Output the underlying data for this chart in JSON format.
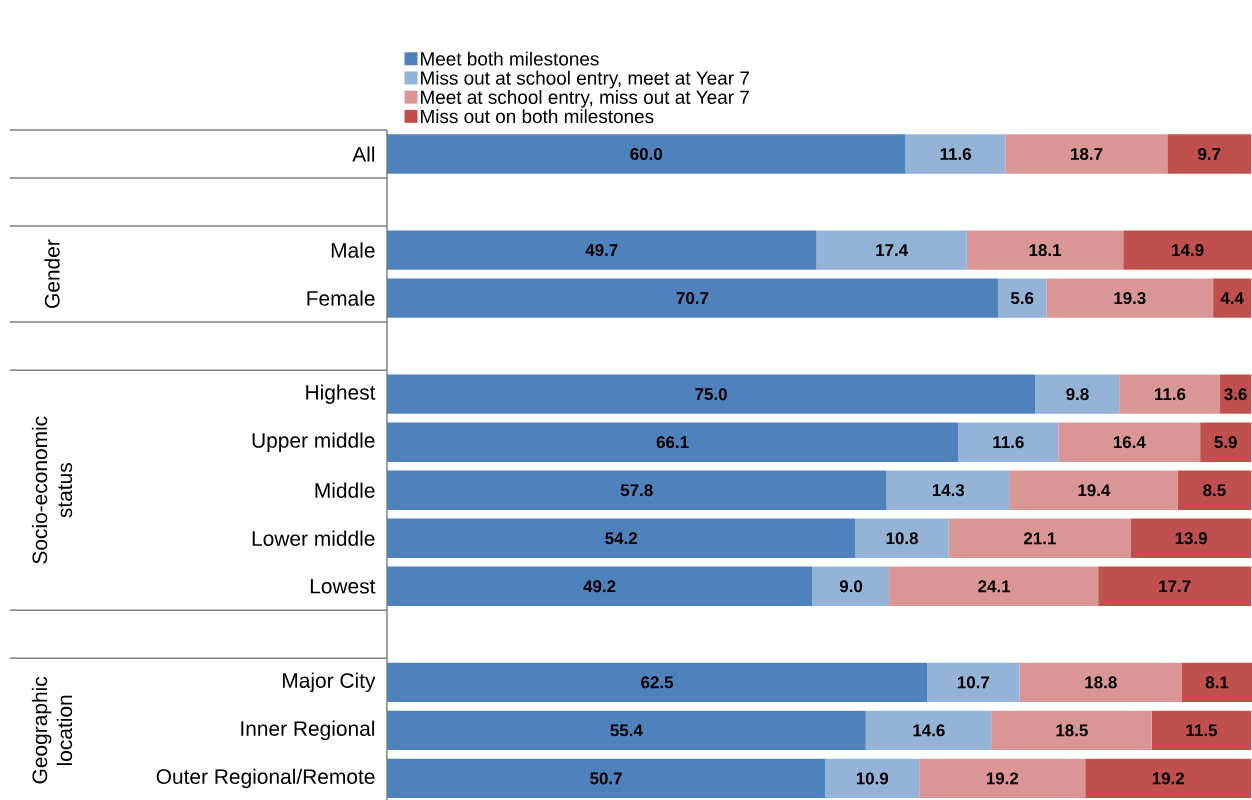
{
  "chart_data": {
    "type": "bar",
    "orientation": "horizontal",
    "stacked": true,
    "legend": "top",
    "categories": [
      "All",
      null,
      "Male",
      "Female",
      null,
      "Highest",
      "Upper middle",
      "Middle",
      "Lower middle",
      "Lowest",
      null,
      "Major City",
      "Inner Regional",
      "Outer Regional/Remote"
    ],
    "series": [
      {
        "name": "Meet both milestones",
        "color": "#4f81bd",
        "values": [
          60.0,
          null,
          49.7,
          70.7,
          null,
          75.0,
          66.1,
          57.8,
          54.2,
          49.2,
          null,
          62.5,
          55.4,
          50.7
        ],
        "value_labels": [
          "60.0",
          null,
          "49.7",
          "70.7",
          null,
          "75.0",
          "66.1",
          "57.8",
          "54.2",
          "49.2",
          null,
          "62.5",
          "55.4",
          "50.7"
        ]
      },
      {
        "name": "Miss out  at school entry, meet  at Year 7",
        "color": "#95b3d7",
        "values": [
          11.6,
          null,
          17.4,
          5.6,
          null,
          9.8,
          11.6,
          14.3,
          10.8,
          9.0,
          null,
          10.7,
          14.6,
          10.9
        ],
        "value_labels": [
          "11.6",
          null,
          "17.4",
          "5.6",
          null,
          "9.8",
          "11.6",
          "14.3",
          "10.8",
          "9.0",
          null,
          "10.7",
          "14.6",
          "10.9"
        ]
      },
      {
        "name": "Meet at school entry, miss out at Year 7",
        "color": "#d99694",
        "values": [
          18.7,
          null,
          18.1,
          19.3,
          null,
          11.6,
          16.4,
          19.4,
          21.1,
          24.1,
          null,
          18.8,
          18.5,
          19.2
        ],
        "value_labels": [
          "18.7",
          null,
          "18.1",
          "19.3",
          null,
          "11.6",
          "16.4",
          "19.4",
          "21.1",
          "24.1",
          null,
          "18.8",
          "18.5",
          "19.2"
        ]
      },
      {
        "name": "Miss out on both milestones",
        "color": "#c0504d",
        "values": [
          9.7,
          null,
          14.9,
          4.4,
          null,
          3.6,
          5.9,
          8.5,
          13.9,
          17.7,
          null,
          8.1,
          11.5,
          19.2
        ],
        "value_labels": [
          "9.7",
          null,
          "14.9",
          "4.4",
          null,
          "3.6",
          "5.9",
          "8.5",
          "13.9",
          "17.7",
          null,
          "8.1",
          "11.5",
          "19.2"
        ]
      }
    ],
    "annotations": [
      "Gender",
      "Socio-economic status",
      "Geographic location"
    ]
  }
}
